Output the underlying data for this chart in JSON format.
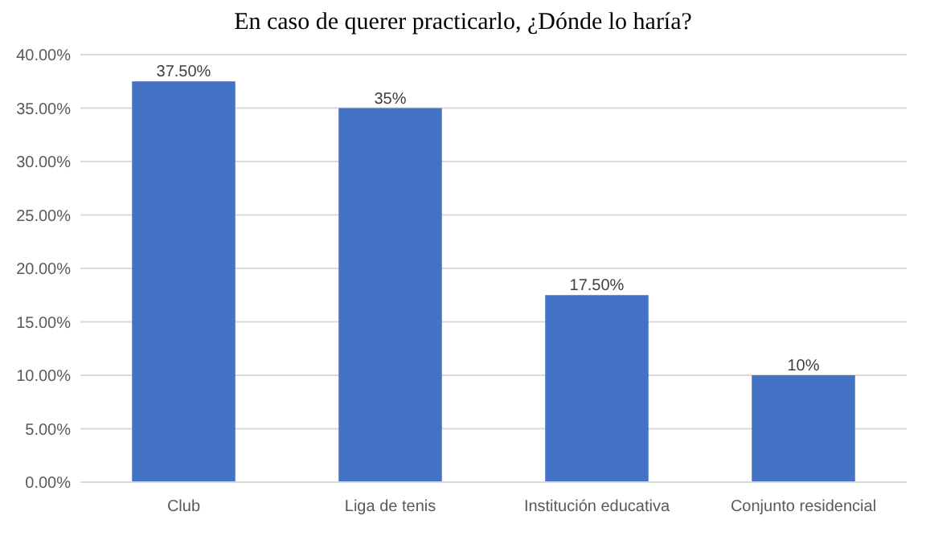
{
  "chart_data": {
    "type": "bar",
    "title": "En caso de querer practicarlo, ¿Dónde lo haría?",
    "categories": [
      "Club",
      "Liga de tenis",
      "Institución educativa",
      "Conjunto residencial"
    ],
    "values": [
      37.5,
      35,
      17.5,
      10
    ],
    "value_labels": [
      "37.50%",
      "35%",
      "17.50%",
      "10%"
    ],
    "color": "#4472c4",
    "ylim": [
      0,
      40
    ],
    "yticks": [
      {
        "value": 0,
        "label": "0.00%"
      },
      {
        "value": 5,
        "label": "5.00%"
      },
      {
        "value": 10,
        "label": "10.00%"
      },
      {
        "value": 15,
        "label": "15.00%"
      },
      {
        "value": 20,
        "label": "20.00%"
      },
      {
        "value": 25,
        "label": "25.00%"
      },
      {
        "value": 30,
        "label": "30.00%"
      },
      {
        "value": 35,
        "label": "35.00%"
      },
      {
        "value": 40,
        "label": "40.00%"
      }
    ],
    "grid": true
  }
}
